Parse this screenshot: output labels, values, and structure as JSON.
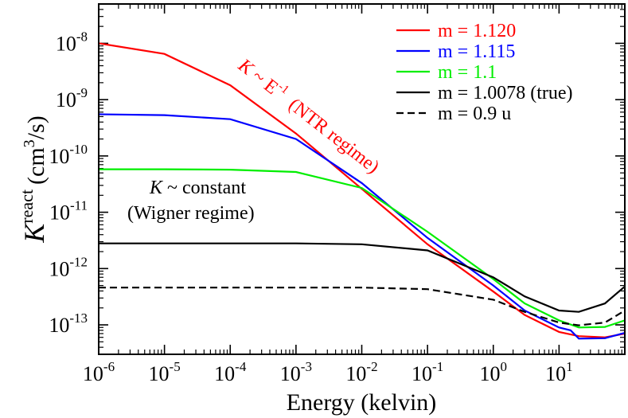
{
  "chart_data": {
    "type": "line",
    "title": "",
    "xlabel": "Energy (kelvin)",
    "ylabel": {
      "symbol": "K",
      "superscript": "react",
      "unit_prefix": "(cm",
      "unit_power": "3",
      "unit_suffix": "/s)"
    },
    "x_scale": "log",
    "y_scale": "log",
    "xlim": [
      1e-06,
      100
    ],
    "ylim": [
      3e-14,
      5e-08
    ],
    "x_ticks": [
      {
        "base": "10",
        "exp": "-6"
      },
      {
        "base": "10",
        "exp": "-5"
      },
      {
        "base": "10",
        "exp": "-4"
      },
      {
        "base": "10",
        "exp": "-3"
      },
      {
        "base": "10",
        "exp": "-2"
      },
      {
        "base": "10",
        "exp": "-1"
      },
      {
        "base": "10",
        "exp": "0"
      },
      {
        "base": "10",
        "exp": "1"
      }
    ],
    "y_ticks": [
      {
        "base": "10",
        "exp": "-13"
      },
      {
        "base": "10",
        "exp": "-12"
      },
      {
        "base": "10",
        "exp": "-11"
      },
      {
        "base": "10",
        "exp": "-10"
      },
      {
        "base": "10",
        "exp": "-9"
      },
      {
        "base": "10",
        "exp": "-8"
      }
    ],
    "series": [
      {
        "name": "m = 1.120",
        "color": "#ff0000",
        "dash": "solid",
        "x": [
          1e-06,
          1e-05,
          0.0001,
          0.001,
          0.01,
          0.1,
          1,
          3,
          10,
          20,
          50,
          100
        ],
        "y": [
          1e-08,
          6.5e-09,
          1.8e-09,
          2.5e-10,
          2.6e-11,
          2.7e-12,
          3.9e-13,
          1.5e-13,
          7.5e-14,
          6.3e-14,
          6e-14,
          7e-14
        ]
      },
      {
        "name": "m = 1.115",
        "color": "#0000ff",
        "dash": "solid",
        "x": [
          1e-06,
          1e-05,
          0.0001,
          0.001,
          0.01,
          0.1,
          1,
          3,
          10,
          15,
          20,
          50,
          100
        ],
        "y": [
          5.5e-10,
          5.3e-10,
          4.5e-10,
          2e-10,
          3.3e-11,
          3.5e-12,
          5e-13,
          1.8e-13,
          9e-14,
          8e-14,
          5.7e-14,
          5.8e-14,
          7.2e-14
        ]
      },
      {
        "name": "m = 1.1",
        "color": "#00ee00",
        "dash": "solid",
        "x": [
          1e-06,
          1e-05,
          0.0001,
          0.001,
          0.01,
          0.1,
          1,
          3,
          10,
          20,
          50,
          100
        ],
        "y": [
          5.8e-11,
          5.8e-11,
          5.7e-11,
          5.2e-11,
          2.7e-11,
          4.5e-12,
          6.5e-13,
          2.4e-13,
          1.2e-13,
          9e-14,
          9.2e-14,
          1.2e-13
        ]
      },
      {
        "name": "m = 1.0078 (true)",
        "color": "#000000",
        "dash": "solid",
        "x": [
          1e-06,
          1e-05,
          0.0001,
          0.001,
          0.01,
          0.1,
          1,
          3,
          10,
          20,
          50,
          100
        ],
        "y": [
          2.8e-12,
          2.8e-12,
          2.8e-12,
          2.8e-12,
          2.7e-12,
          2.1e-12,
          7e-13,
          3.2e-13,
          1.8e-13,
          1.7e-13,
          2.4e-13,
          4.8e-13
        ]
      },
      {
        "name": "m = 0.9 u",
        "color": "#000000",
        "dash": "dashed",
        "x": [
          1e-06,
          1e-05,
          0.0001,
          0.001,
          0.01,
          0.1,
          1,
          3,
          10,
          20,
          50,
          100
        ],
        "y": [
          4.6e-13,
          4.6e-13,
          4.6e-13,
          4.6e-13,
          4.6e-13,
          4.3e-13,
          2.8e-13,
          1.7e-13,
          1.1e-13,
          9.8e-14,
          1.1e-13,
          1.8e-13
        ]
      }
    ],
    "annotations": [
      {
        "id": "ntr",
        "symbol": "K",
        "rest": "~ E",
        "exp": "-1",
        "tail": "(NTR regime)",
        "color": "#ff0000"
      },
      {
        "id": "wigner",
        "line1_symbol": "K",
        "line1_rest": "~  constant",
        "line2": "(Wigner regime)",
        "color": "#000000"
      }
    ],
    "legend_position": "top-right",
    "grid": false
  }
}
